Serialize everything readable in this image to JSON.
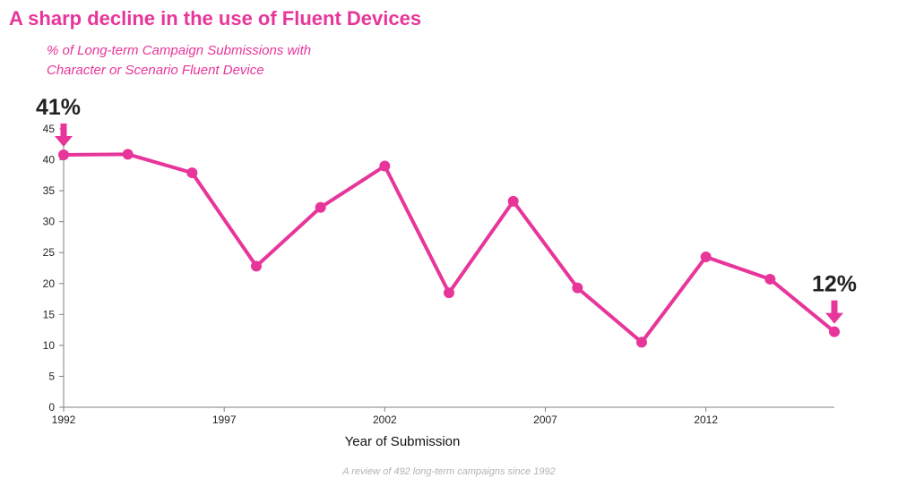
{
  "chart_data": {
    "type": "line",
    "title": "A sharp decline in the use of Fluent Devices",
    "subtitle_line1": "% of Long-term Campaign Submissions with",
    "subtitle_line2": "Character or Scenario Fluent Device",
    "xlabel": "Year of Submission",
    "ylabel": "",
    "x": [
      1992,
      1994,
      1996,
      1998,
      2000,
      2002,
      2004,
      2006,
      2008,
      2010,
      2012,
      2014,
      2016
    ],
    "values": [
      40.8,
      40.9,
      37.9,
      22.8,
      32.3,
      39.0,
      18.5,
      33.3,
      19.3,
      10.5,
      24.3,
      20.7,
      12.2
    ],
    "xlim": [
      1992,
      2016
    ],
    "ylim": [
      0,
      45
    ],
    "yticks": [
      0,
      5,
      10,
      15,
      20,
      25,
      30,
      35,
      40,
      45
    ],
    "xticks": [
      1992,
      1997,
      2002,
      2007,
      2012
    ],
    "line_color": "#e8359a",
    "annotations": [
      {
        "label": "41%",
        "x": 1992,
        "y": 40.8,
        "placement": "above-left"
      },
      {
        "label": "12%",
        "x": 2016,
        "y": 12.2,
        "placement": "above-right"
      }
    ],
    "footnote": "A review of 492 long-term campaigns since 1992"
  }
}
